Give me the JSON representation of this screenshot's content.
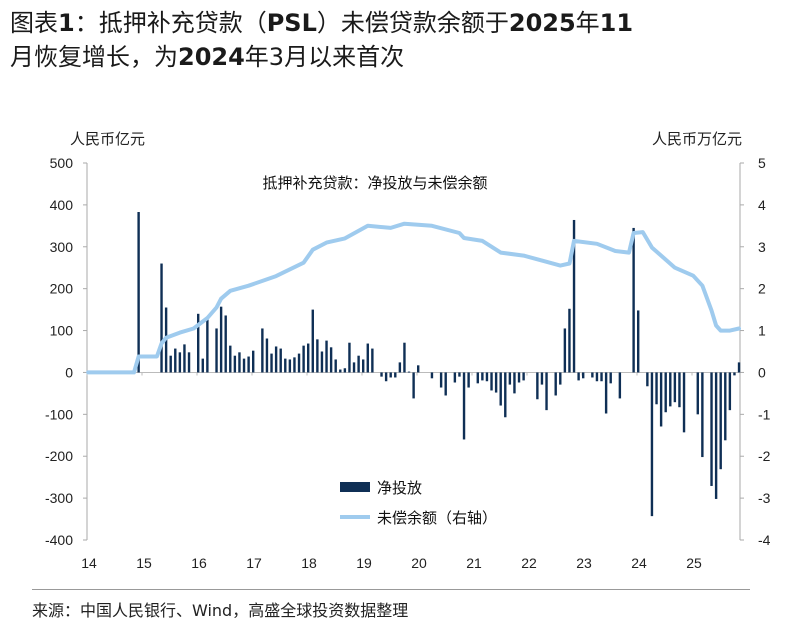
{
  "title": {
    "parts": [
      {
        "text": "图表",
        "bold": false
      },
      {
        "text": "1",
        "bold": true
      },
      {
        "text": "：抵押补充贷款（",
        "bold": false
      },
      {
        "text": "PSL",
        "bold": true
      },
      {
        "text": "）未偿贷款余额于",
        "bold": false
      },
      {
        "text": "2025",
        "bold": true
      },
      {
        "text": "年",
        "bold": false
      },
      {
        "text": "11",
        "bold": true
      },
      {
        "text": "月恢复增长，为",
        "bold": false
      },
      {
        "text": "2024",
        "bold": true
      },
      {
        "text": "年3月以来首次",
        "bold": false
      }
    ]
  },
  "source": "来源：中国人民银行、Wind，高盛全球投资数据整理",
  "chart_data": {
    "type": "bar+line",
    "title": "抵押补充贷款：净投放与未偿余额",
    "ylabel_left": "人民币亿元",
    "ylabel_right": "人民币万亿元",
    "ylim_left": [
      -400,
      500
    ],
    "ylim_right": [
      -4,
      5
    ],
    "yticks_left": [
      "500",
      "400",
      "300",
      "200",
      "100",
      "0",
      "-100",
      "-200",
      "-300",
      "-400"
    ],
    "yticks_right": [
      "5",
      "4",
      "3",
      "2",
      "1",
      "0",
      "-1",
      "-2",
      "-3",
      "-4"
    ],
    "xticks": [
      "14",
      "15",
      "16",
      "17",
      "18",
      "19",
      "20",
      "21",
      "22",
      "23",
      "24",
      "25"
    ],
    "grid": false,
    "legend_position": "bottom-center",
    "colors": {
      "bar": "#0f2f55",
      "line": "#9fcbee"
    },
    "series": [
      {
        "name": "净投放",
        "kind": "bar",
        "axis": "left",
        "frequency": "monthly",
        "start": "2014-01",
        "values": [
          0,
          0,
          0,
          0,
          0,
          0,
          0,
          0,
          0,
          0,
          0,
          383,
          0,
          0,
          0,
          0,
          260,
          155,
          40,
          57,
          48,
          67,
          48,
          0,
          140,
          33,
          128,
          0,
          105,
          157,
          136,
          64,
          40,
          48,
          33,
          38,
          52,
          0,
          105,
          81,
          45,
          62,
          57,
          33,
          31,
          36,
          45,
          64,
          69,
          150,
          79,
          50,
          76,
          60,
          31,
          7,
          10,
          71,
          24,
          40,
          31,
          69,
          57,
          0,
          -10,
          -21,
          -12,
          -12,
          24,
          71,
          2,
          -62,
          17,
          0,
          0,
          -14,
          0,
          -36,
          -55,
          0,
          -24,
          -10,
          -160,
          -36,
          0,
          -26,
          -19,
          -21,
          -43,
          -48,
          -79,
          -107,
          -29,
          -50,
          -24,
          -19,
          0,
          0,
          -64,
          -29,
          -90,
          0,
          -55,
          -29,
          105,
          152,
          364,
          -19,
          -14,
          0,
          -12,
          -21,
          -21,
          -98,
          -26,
          0,
          -62,
          0,
          0,
          345,
          148,
          0,
          -33,
          -343,
          -76,
          -129,
          -95,
          -81,
          -71,
          -83,
          -143,
          0,
          0,
          -100,
          -202,
          0,
          -271,
          -302,
          -231,
          -162,
          -90,
          -7,
          24
        ]
      },
      {
        "name": "未偿余额（右轴）",
        "kind": "line",
        "axis": "right",
        "points": [
          [
            "2014-01",
            0
          ],
          [
            "2014-11",
            0
          ],
          [
            "2014-12",
            0.38
          ],
          [
            "2015-04",
            0.38
          ],
          [
            "2015-05",
            0.69
          ],
          [
            "2015-06",
            0.83
          ],
          [
            "2015-09",
            0.95
          ],
          [
            "2015-12",
            1.05
          ],
          [
            "2016-03",
            1.3
          ],
          [
            "2016-05",
            1.55
          ],
          [
            "2016-06",
            1.76
          ],
          [
            "2016-08",
            1.95
          ],
          [
            "2016-12",
            2.07
          ],
          [
            "2017-06",
            2.3
          ],
          [
            "2017-12",
            2.62
          ],
          [
            "2018-02",
            2.93
          ],
          [
            "2018-05",
            3.1
          ],
          [
            "2018-09",
            3.2
          ],
          [
            "2019-02",
            3.5
          ],
          [
            "2019-07",
            3.45
          ],
          [
            "2019-10",
            3.55
          ],
          [
            "2020-04",
            3.5
          ],
          [
            "2020-10",
            3.33
          ],
          [
            "2020-11",
            3.21
          ],
          [
            "2021-03",
            3.14
          ],
          [
            "2021-07",
            2.86
          ],
          [
            "2021-12",
            2.79
          ],
          [
            "2022-04",
            2.67
          ],
          [
            "2022-08",
            2.55
          ],
          [
            "2022-10",
            2.6
          ],
          [
            "2022-11",
            3.14
          ],
          [
            "2023-04",
            3.07
          ],
          [
            "2023-08",
            2.9
          ],
          [
            "2023-11",
            2.86
          ],
          [
            "2023-12",
            3.33
          ],
          [
            "2024-02",
            3.35
          ],
          [
            "2024-04",
            2.98
          ],
          [
            "2024-09",
            2.5
          ],
          [
            "2025-01",
            2.31
          ],
          [
            "2025-03",
            2.07
          ],
          [
            "2025-05",
            1.48
          ],
          [
            "2025-06",
            1.12
          ],
          [
            "2025-07",
            1.0
          ],
          [
            "2025-09",
            1.0
          ],
          [
            "2025-11",
            1.05
          ]
        ]
      }
    ]
  }
}
